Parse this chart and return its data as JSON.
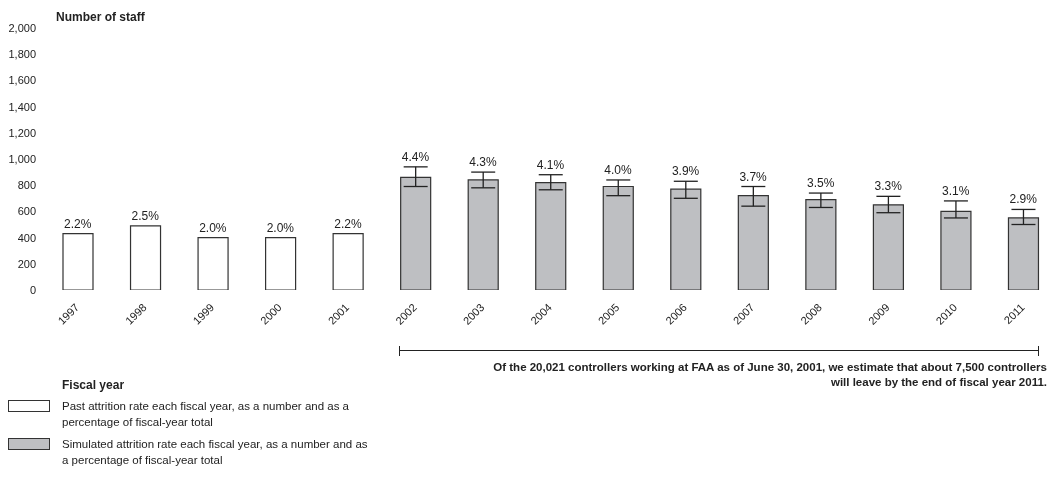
{
  "chart_data": {
    "type": "bar",
    "ylabel": "Number of staff",
    "xlabel": "Fiscal year",
    "categories": [
      "1997",
      "1998",
      "1999",
      "2000",
      "2001",
      "2002",
      "2003",
      "2004",
      "2005",
      "2006",
      "2007",
      "2008",
      "2009",
      "2010",
      "2011"
    ],
    "stacked": true,
    "series": [
      {
        "name": "Past attrition rate each fiscal year, as a number and as a percentage of fiscal-year total",
        "color": "#ffffff",
        "values": [
          430,
          490,
          400,
          400,
          430,
          null,
          null,
          null,
          null,
          null,
          null,
          null,
          null,
          null,
          null
        ]
      },
      {
        "name": "Simulated attrition rate each fiscal year, as a number and as a percentage of fiscal-year total",
        "color": "#bebfc2",
        "values": [
          null,
          null,
          null,
          null,
          null,
          860,
          840,
          820,
          790,
          770,
          720,
          690,
          650,
          600,
          550
        ],
        "errors": [
          null,
          null,
          null,
          null,
          null,
          [
            790,
            940
          ],
          [
            780,
            900
          ],
          [
            765,
            880
          ],
          [
            720,
            840
          ],
          [
            700,
            830
          ],
          [
            640,
            790
          ],
          [
            630,
            740
          ],
          [
            590,
            715
          ],
          [
            550,
            680
          ],
          [
            500,
            615
          ]
        ]
      }
    ],
    "ylim": [
      0,
      2000
    ],
    "yticks": [
      0,
      200,
      400,
      600,
      800,
      {
        "value": 1000,
        "label": "1,000"
      },
      {
        "value": 1200,
        "label": "1,200"
      },
      {
        "value": 1400,
        "label": "1,400"
      },
      {
        "value": 1600,
        "label": "1,600"
      },
      {
        "value": 1800,
        "label": "1,800"
      },
      {
        "value": 2000,
        "label": "2,000"
      }
    ],
    "grid": false,
    "legend": "bottom left",
    "annotations": [
      {
        "text": "2.2%",
        "x": "1997",
        "y": 430
      },
      {
        "text": "2.5%",
        "x": "1998",
        "y": 490
      },
      {
        "text": "2.0%",
        "x": "1999",
        "y": 400
      },
      {
        "text": "2.0%",
        "x": "2000",
        "y": 400
      },
      {
        "text": "2.2%",
        "x": "2001",
        "y": 430
      },
      {
        "text": "4.4%",
        "x": "2002",
        "y": 940
      },
      {
        "text": "4.3%",
        "x": "2003",
        "y": 900
      },
      {
        "text": "4.1%",
        "x": "2004",
        "y": 880
      },
      {
        "text": "4.0%",
        "x": "2005",
        "y": 840
      },
      {
        "text": "3.9%",
        "x": "2006",
        "y": 830
      },
      {
        "text": "3.7%",
        "x": "2007",
        "y": 790
      },
      {
        "text": "3.5%",
        "x": "2008",
        "y": 740
      },
      {
        "text": "3.3%",
        "x": "2009",
        "y": 715
      },
      {
        "text": "3.1%",
        "x": "2010",
        "y": 680
      },
      {
        "text": "2.9%",
        "x": "2011",
        "y": 615
      },
      "Of the 20,021 controllers working at FAA as of June 30, 2001, we estimate that about 7,500 controllers will leave by the end of fiscal year 2011."
    ]
  }
}
